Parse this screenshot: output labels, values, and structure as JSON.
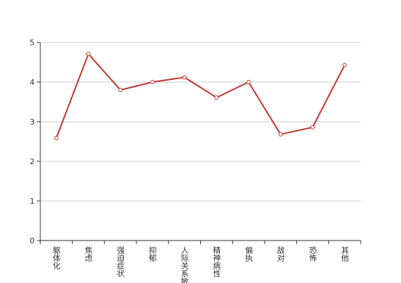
{
  "chart_data": {
    "type": "line",
    "categories": [
      "躯体化",
      "焦虑",
      "强迫症状",
      "抑郁",
      "人际关系敏感",
      "精神病性",
      "偏执",
      "敌对",
      "恐怖",
      "其他"
    ],
    "series": [
      {
        "color": "#c23531",
        "values": [
          2.59,
          4.71,
          3.8,
          4.0,
          4.12,
          3.61,
          4.0,
          2.68,
          2.86,
          4.43
        ]
      }
    ],
    "ylim": [
      0,
      5
    ],
    "yticks": [
      0,
      1,
      2,
      3,
      4,
      5
    ],
    "grid": true
  }
}
